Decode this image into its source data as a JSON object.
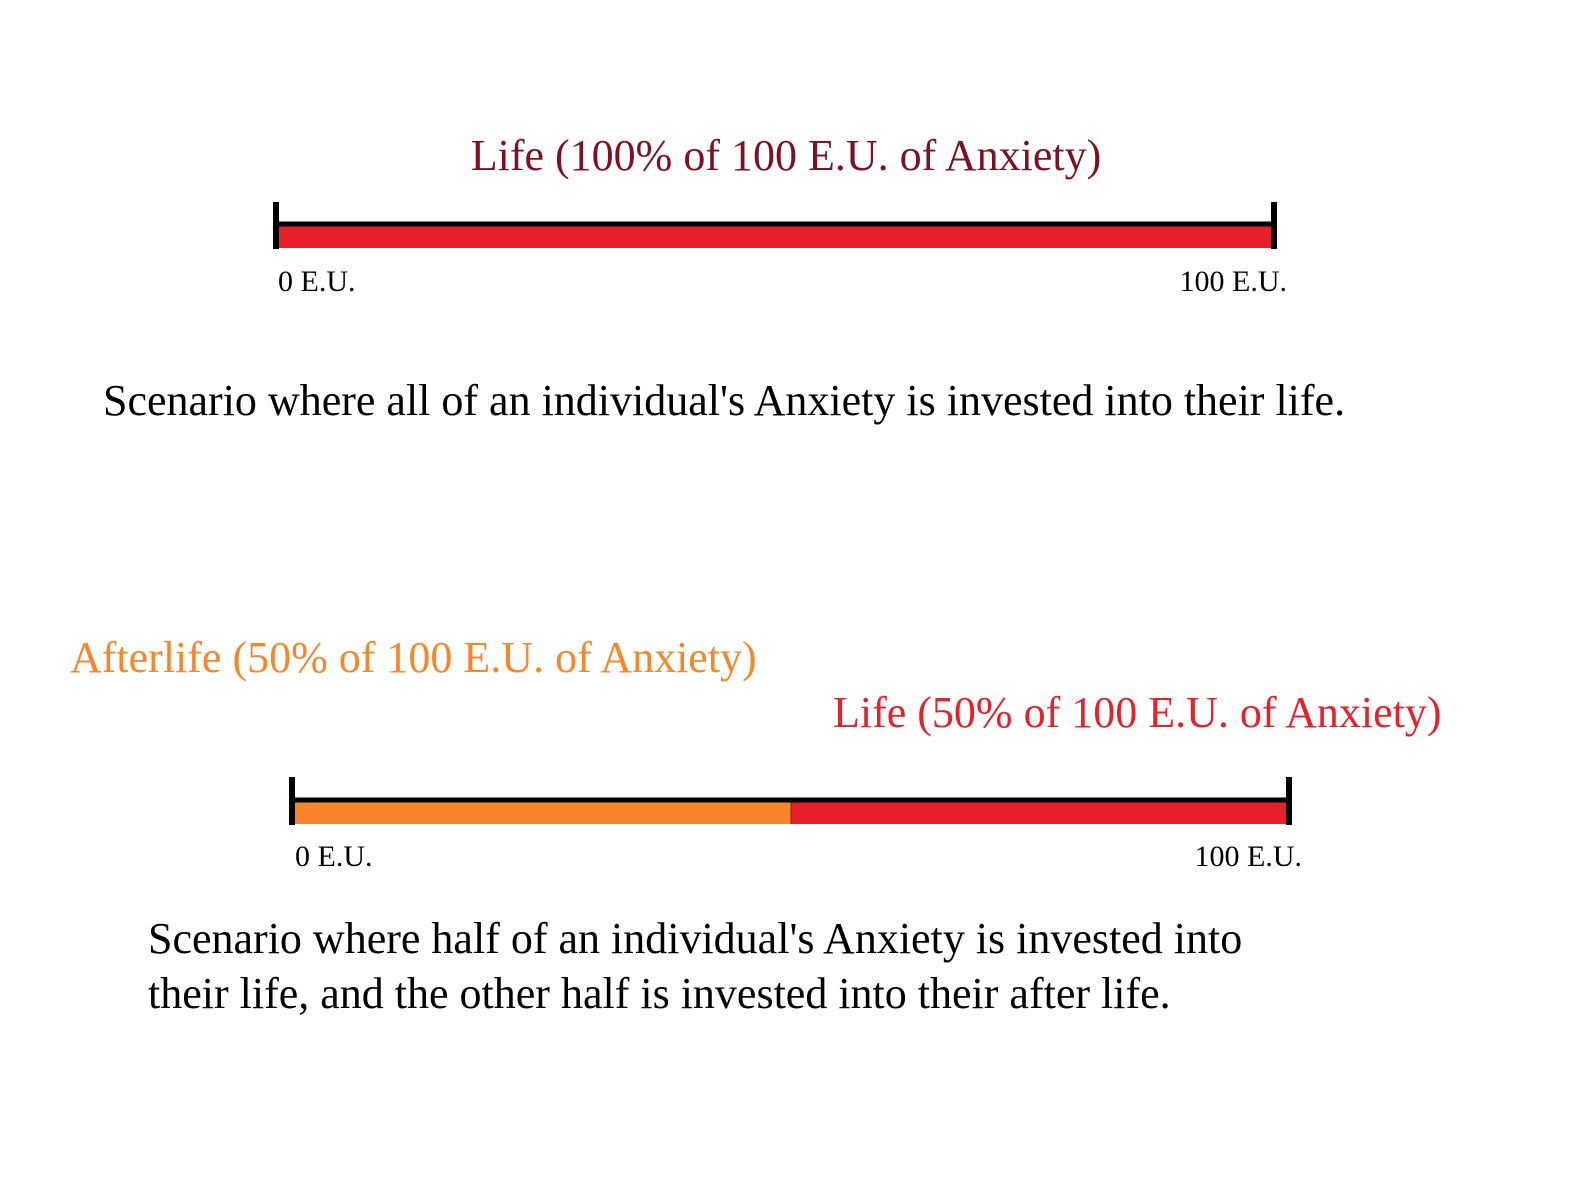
{
  "scenarios": [
    {
      "labels": [
        "Life (100% of 100 E.U. of Anxiety)"
      ],
      "axis": {
        "start": "0 E.U.",
        "end": "100 E.U."
      },
      "caption": [
        "Scenario where all of an individual's Anxiety is invested into their life."
      ]
    },
    {
      "labels": [
        "Afterlife (50% of 100 E.U. of Anxiety)",
        "Life (50% of 100 E.U. of Anxiety)"
      ],
      "axis": {
        "start": "0 E.U.",
        "end": "100 E.U."
      },
      "caption": [
        "Scenario where half of an individual's Anxiety is invested into",
        "their life, and the other half is invested into their after life."
      ]
    }
  ]
}
